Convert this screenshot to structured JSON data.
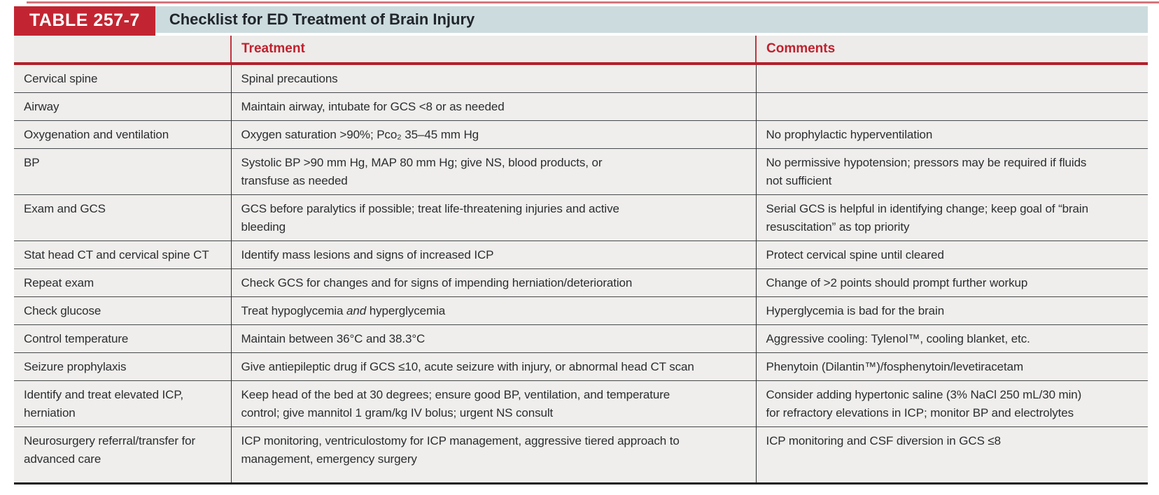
{
  "table": {
    "badge": "TABLE 257-7",
    "title": "Checklist for ED Treatment of Brain Injury",
    "columns": {
      "treatment": "Treatment",
      "comments": "Comments"
    },
    "rows": [
      {
        "label": "Cervical spine",
        "treatment": "Spinal precautions",
        "comments": ""
      },
      {
        "label": "Airway",
        "treatment": "Maintain airway, intubate for GCS <8 or as needed",
        "comments": ""
      },
      {
        "label": "Oxygenation and ventilation",
        "treatment": "Oxygen saturation >90%; Pco₂ 35–45 mm Hg",
        "comments": "No prophylactic hyperventilation"
      },
      {
        "label": "BP",
        "treatment": "Systolic BP >90 mm Hg, MAP 80 mm Hg; give NS, blood products, or\ntransfuse as needed",
        "comments": "No permissive hypotension; pressors may be required if fluids\nnot sufficient"
      },
      {
        "label": "Exam and GCS",
        "treatment": "GCS before paralytics if possible; treat life-threatening injuries and active\nbleeding",
        "comments": "Serial GCS is helpful in identifying change; keep goal of “brain\nresuscitation” as top priority"
      },
      {
        "label": "Stat head CT and cervical spine CT",
        "treatment": "Identify mass lesions and signs of increased ICP",
        "comments": "Protect cervical spine until cleared"
      },
      {
        "label": "Repeat exam",
        "treatment": "Check GCS for changes and for signs of impending herniation/deterioration",
        "comments": "Change of >2 points should prompt further workup"
      },
      {
        "label": "Check glucose",
        "treatment_pre": "Treat hypoglycemia ",
        "treatment_em": "and",
        "treatment_post": " hyperglycemia",
        "comments": "Hyperglycemia is bad for the brain"
      },
      {
        "label": "Control temperature",
        "treatment": "Maintain between 36°C and 38.3°C",
        "comments": "Aggressive cooling: Tylenol™, cooling blanket, etc."
      },
      {
        "label": "Seizure prophylaxis",
        "treatment": "Give antiepileptic drug if GCS ≤10, acute seizure with injury, or abnormal head CT scan",
        "comments": "Phenytoin (Dilantin™)/fosphenytoin/levetiracetam"
      },
      {
        "label": "Identify and treat elevated ICP,\nherniation",
        "treatment": "Keep head of the bed at 30 degrees; ensure good BP, ventilation, and temperature\ncontrol; give mannitol 1 gram/kg IV bolus; urgent NS consult",
        "comments": "Consider adding hypertonic saline (3% NaCl 250 mL/30 min)\nfor refractory elevations in ICP; monitor BP and electrolytes"
      },
      {
        "label": "Neurosurgery referral/transfer for\nadvanced care",
        "treatment": "ICP monitoring, ventriculostomy for ICP management, aggressive tiered approach to\nmanagement, emergency surgery",
        "comments": "ICP monitoring and CSF diversion in GCS ≤8"
      }
    ]
  },
  "colors": {
    "badge_red": "#c22531",
    "header_rule_red": "#b2202c",
    "column_header_text_red": "#c0212e",
    "title_strip_bg": "#ccdbde",
    "row_bg": "#efeeec",
    "grid_line": "#47494b",
    "bottom_rule": "#1a1c1d"
  }
}
